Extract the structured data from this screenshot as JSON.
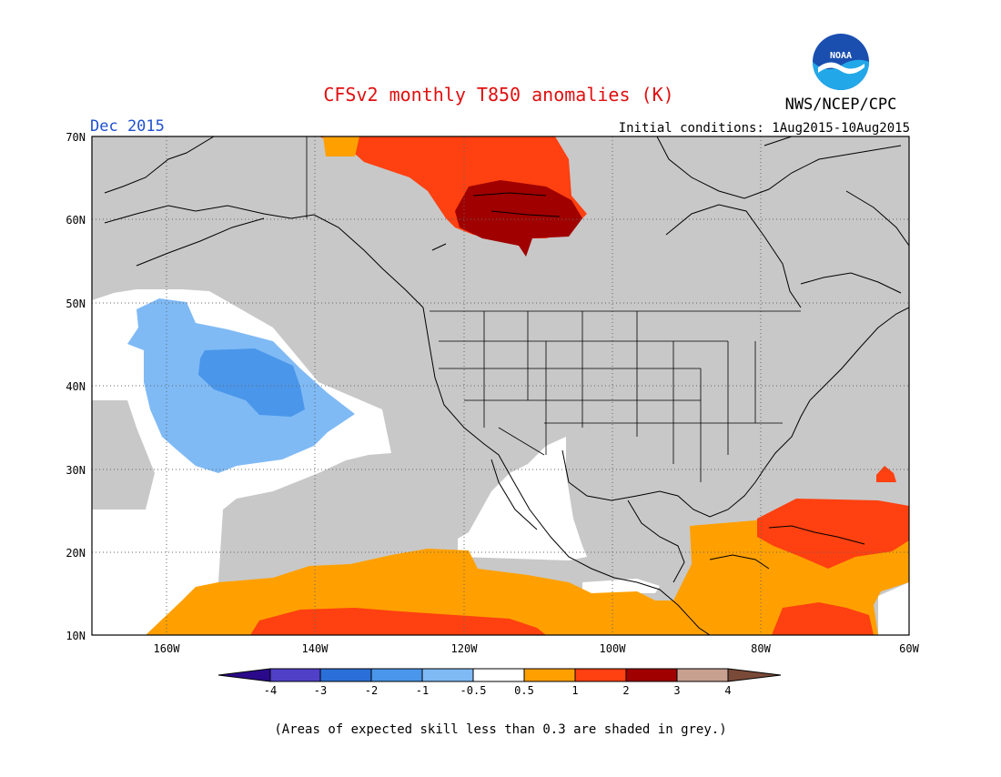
{
  "header": {
    "title": "CFSv2 monthly T850 anomalies (K)",
    "org": "NWS/NCEP/CPC",
    "logo_text": "NOAA",
    "month": "Dec 2015",
    "init": "Initial conditions: 1Aug2015-10Aug2015"
  },
  "map": {
    "region": "North America / Northeast Pacific",
    "lat_labels": [
      "70N",
      "60N",
      "50N",
      "40N",
      "30N",
      "20N",
      "10N"
    ],
    "lon_labels": [
      "160W",
      "140W",
      "120W",
      "100W",
      "80W",
      "60W"
    ]
  },
  "colorbar": {
    "labels": [
      "-4",
      "-3",
      "-2",
      "-1",
      "-0.5",
      "0.5",
      "1",
      "2",
      "3",
      "4"
    ],
    "colors": [
      "#2a0a8a",
      "#5040c8",
      "#2a6fd8",
      "#4a96ea",
      "#7fbaf5",
      "#ffffff",
      "#ffa000",
      "#ff4010",
      "#a00000",
      "#c8a090",
      "#7a4a38"
    ]
  },
  "footer": {
    "note": "(Areas of expected skill less than 0.3 are shaded in grey.)"
  },
  "colors": {
    "title": "#e01010",
    "month": "#2050d0",
    "skill_grey": "#c8c8c8",
    "orange": "#ffa000",
    "red": "#ff4010",
    "darkred": "#a00000",
    "lightblue": "#7fbaf5",
    "blue": "#4a96ea"
  }
}
